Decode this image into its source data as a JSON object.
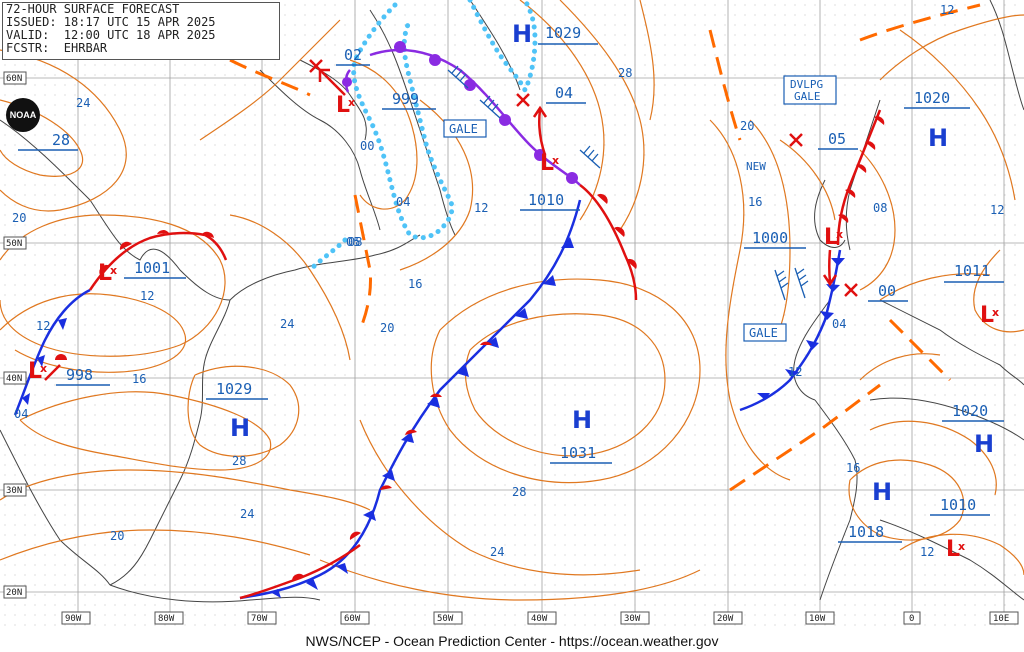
{
  "header": {
    "title": "72-HOUR SURFACE FORECAST",
    "issued": "ISSUED: 18:17 UTC 15 APR 2025",
    "valid": "VALID:  12:00 UTC 18 APR 2025",
    "forecaster": "FCSTR:  EHRBAR"
  },
  "logo_text": "NOAA",
  "footer": "NWS/NCEP - Ocean Prediction Center - https://ocean.weather.gov",
  "lat_labels": [
    "60N",
    "50N",
    "40N",
    "30N",
    "20N"
  ],
  "lon_labels": [
    "90W",
    "80W",
    "70W",
    "60W",
    "50W",
    "40W",
    "30W",
    "20W",
    "10W",
    "0",
    "10E"
  ],
  "highs": [
    {
      "letter": "H",
      "pressure": "1029"
    },
    {
      "letter": "H",
      "pressure": "1029"
    },
    {
      "letter": "H",
      "pressure": "1031"
    },
    {
      "letter": "H",
      "pressure": "1020"
    },
    {
      "letter": "H",
      "pressure": "1020"
    },
    {
      "letter": "H",
      "pressure": "1018"
    }
  ],
  "lows": [
    {
      "pressure": "02"
    },
    {
      "pressure": "999"
    },
    {
      "pressure": "04"
    },
    {
      "pressure": "1010"
    },
    {
      "pressure": "1001"
    },
    {
      "pressure": "998"
    },
    {
      "pressure": "1000"
    },
    {
      "pressure": "05"
    },
    {
      "pressure": "00"
    },
    {
      "pressure": "1011"
    },
    {
      "pressure": "1010"
    }
  ],
  "boxes": {
    "gale1": "GALE",
    "gale2": "GALE",
    "dvlpg_line1": "DVLPG",
    "dvlpg_line2": "GALE",
    "new": "NEW"
  },
  "isobar_labels": [
    "24",
    "28",
    "20",
    "12",
    "16",
    "24",
    "20",
    "28",
    "24",
    "20",
    "24",
    "28",
    "00",
    "04",
    "08",
    "12",
    "16",
    "20",
    "16",
    "12",
    "04",
    "08",
    "12",
    "12",
    "28",
    "12",
    "16",
    "05",
    "12",
    "04"
  ],
  "colors": {
    "isobar": "#e07820",
    "text_blue": "#1a5fb4",
    "cold_front": "#1a2fe0",
    "warm_front": "#e01010",
    "occluded": "#8a2be2",
    "ice": "#4fc3f7",
    "grid": "#999999",
    "coast": "#444444"
  }
}
